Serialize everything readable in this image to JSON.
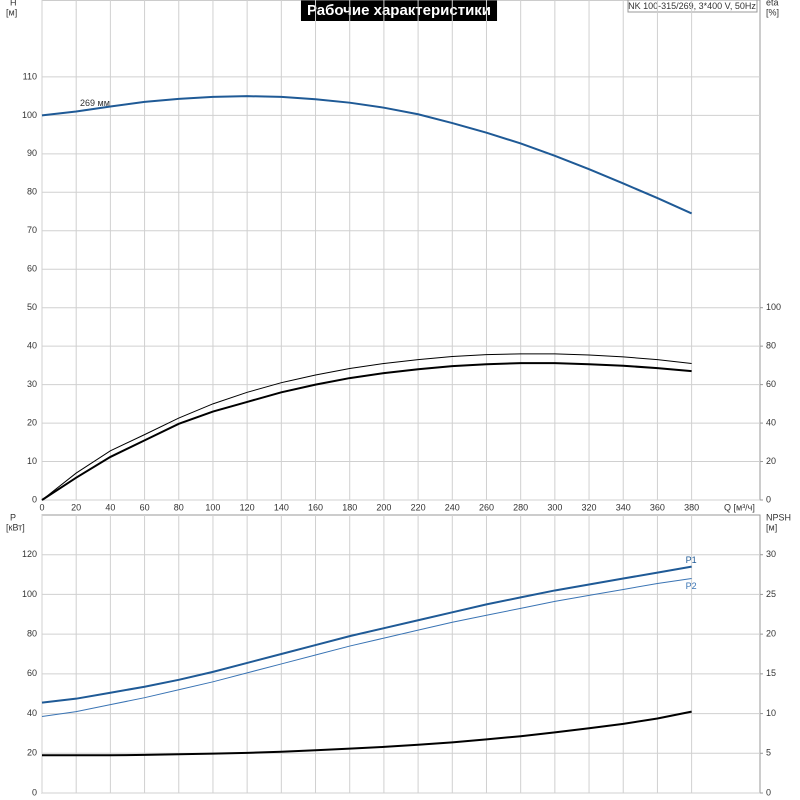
{
  "title": "Рабочие характеристики",
  "model": "NK 100-315/269, 3*400 V, 50Hz",
  "chart_data": [
    {
      "type": "line",
      "ylabel": "H",
      "yunit": "[м]",
      "y2label": "eta",
      "y2unit": "[%]",
      "xlabel": "Q [м³/ч]",
      "xlim": [
        0,
        420
      ],
      "xticks": [
        0,
        20,
        40,
        60,
        80,
        100,
        120,
        140,
        160,
        180,
        200,
        220,
        240,
        260,
        280,
        300,
        320,
        340,
        360,
        380
      ],
      "ylim": [
        0,
        130
      ],
      "yticks": [
        0,
        10,
        20,
        30,
        40,
        50,
        60,
        70,
        80,
        90,
        100,
        110
      ],
      "y2lim": [
        0,
        260
      ],
      "y2ticks": [
        0,
        20,
        40,
        60,
        80,
        100
      ],
      "grid": true,
      "x": [
        0,
        20,
        40,
        60,
        80,
        100,
        120,
        140,
        160,
        180,
        200,
        220,
        240,
        260,
        280,
        300,
        320,
        340,
        360,
        380
      ],
      "annotation": "269 мм",
      "series": [
        {
          "color": "#1f5a96",
          "values": [
            100,
            101,
            102.3,
            103.5,
            104.3,
            104.8,
            105,
            104.8,
            104.2,
            103.3,
            102,
            100.3,
            98,
            95.5,
            92.7,
            89.5,
            86,
            82.3,
            78.5,
            74.5
          ]
        },
        {
          "color": "#000000",
          "axis": "y2",
          "values": [
            0,
            14,
            25.6,
            34,
            42.6,
            50,
            56,
            61,
            65,
            68.4,
            71,
            73,
            74.6,
            75.6,
            76,
            76,
            75.4,
            74.4,
            73,
            71
          ]
        },
        {
          "color": "#000000",
          "axis": "y2",
          "values": [
            0,
            11.6,
            22.4,
            31,
            39.6,
            46,
            51,
            56,
            60,
            63.4,
            66,
            68,
            69.6,
            70.6,
            71.2,
            71.2,
            70.6,
            69.8,
            68.6,
            67
          ]
        }
      ]
    },
    {
      "type": "line",
      "ylabel": "P",
      "yunit": "[кВт]",
      "y2label": "NPSH",
      "y2unit": "[м]",
      "xlim": [
        0,
        420
      ],
      "xticks": [
        0,
        20,
        40,
        60,
        80,
        100,
        120,
        140,
        160,
        180,
        200,
        220,
        240,
        260,
        280,
        300,
        320,
        340,
        360,
        380
      ],
      "ylim": [
        0,
        140
      ],
      "yticks": [
        0,
        20,
        40,
        60,
        80,
        100,
        120
      ],
      "y2lim": [
        0,
        35
      ],
      "y2ticks": [
        0,
        5,
        10,
        15,
        20,
        25,
        30
      ],
      "grid": true,
      "x": [
        0,
        20,
        40,
        60,
        80,
        100,
        120,
        140,
        160,
        180,
        200,
        220,
        240,
        260,
        280,
        300,
        320,
        340,
        360,
        380
      ],
      "series": [
        {
          "name": "P1",
          "color": "#1f5a96",
          "values": [
            45.5,
            47.5,
            50.5,
            53.5,
            57,
            61,
            65.5,
            70,
            74.5,
            79,
            83,
            87,
            91,
            95,
            98.5,
            102,
            105,
            108,
            111,
            114
          ]
        },
        {
          "name": "P2",
          "color": "#3a74b4",
          "values": [
            38.5,
            41,
            44.5,
            48,
            52,
            56,
            60.5,
            65,
            69.5,
            74,
            78,
            82,
            86,
            89.5,
            93,
            96.5,
            99.5,
            102.5,
            105.5,
            108
          ]
        },
        {
          "color": "#000000",
          "axis": "y2",
          "values": [
            4.75,
            4.75,
            4.75,
            4.8,
            4.88,
            4.95,
            5.05,
            5.2,
            5.38,
            5.58,
            5.8,
            6.08,
            6.38,
            6.75,
            7.15,
            7.63,
            8.15,
            8.7,
            9.38,
            10.25
          ]
        }
      ]
    }
  ]
}
